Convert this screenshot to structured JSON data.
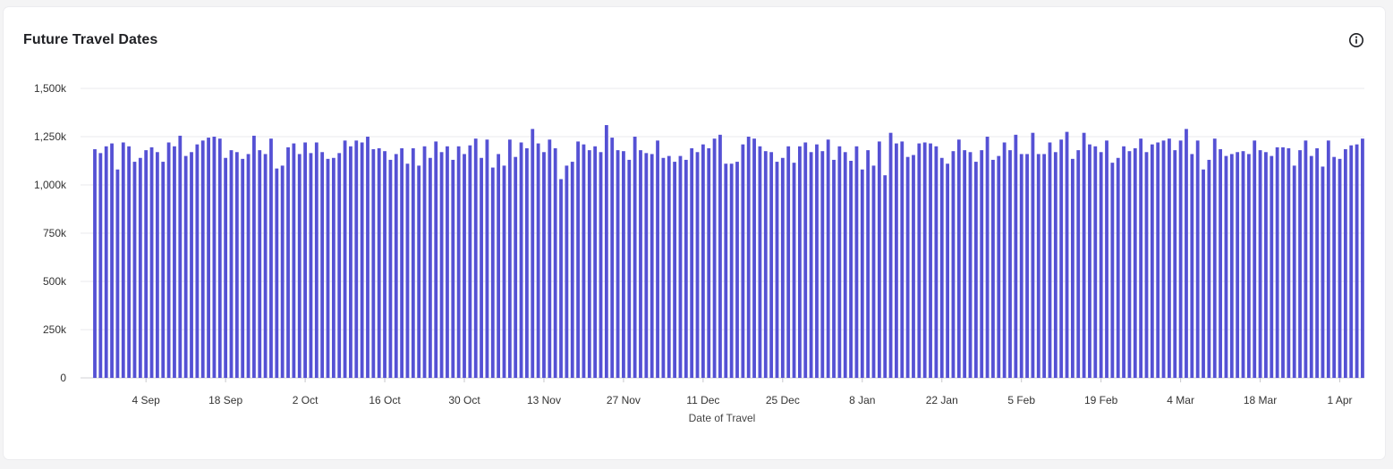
{
  "card": {
    "title": "Future Travel Dates",
    "info_icon": "info-icon"
  },
  "chart_data": {
    "type": "bar",
    "xlabel": "Date of Travel",
    "ylabel": "",
    "ylim": [
      0,
      1500000
    ],
    "y_ticks": [
      {
        "value": 0,
        "label": "0"
      },
      {
        "value": 250000,
        "label": "250k"
      },
      {
        "value": 500000,
        "label": "500k"
      },
      {
        "value": 750000,
        "label": "750k"
      },
      {
        "value": 1000000,
        "label": "1,000k"
      },
      {
        "value": 1250000,
        "label": "1,250k"
      },
      {
        "value": 1500000,
        "label": "1,500k"
      }
    ],
    "x_ticks": [
      {
        "index": 9,
        "label": "4 Sep"
      },
      {
        "index": 23,
        "label": "18 Sep"
      },
      {
        "index": 37,
        "label": "2 Oct"
      },
      {
        "index": 51,
        "label": "16 Oct"
      },
      {
        "index": 65,
        "label": "30 Oct"
      },
      {
        "index": 79,
        "label": "13 Nov"
      },
      {
        "index": 93,
        "label": "27 Nov"
      },
      {
        "index": 107,
        "label": "11 Dec"
      },
      {
        "index": 121,
        "label": "25 Dec"
      },
      {
        "index": 135,
        "label": "8 Jan"
      },
      {
        "index": 149,
        "label": "22 Jan"
      },
      {
        "index": 163,
        "label": "5 Feb"
      },
      {
        "index": 177,
        "label": "19 Feb"
      },
      {
        "index": 191,
        "label": "4 Mar"
      },
      {
        "index": 205,
        "label": "18 Mar"
      },
      {
        "index": 219,
        "label": "1 Apr"
      }
    ],
    "grid": true,
    "bar_color": "#5551d4",
    "series": [
      {
        "values": [
          1185000,
          1165000,
          1200000,
          1215000,
          1080000,
          1220000,
          1200000,
          1120000,
          1140000,
          1180000,
          1195000,
          1170000,
          1120000,
          1220000,
          1200000,
          1255000,
          1150000,
          1170000,
          1210000,
          1230000,
          1245000,
          1250000,
          1240000,
          1140000,
          1180000,
          1170000,
          1135000,
          1160000,
          1255000,
          1180000,
          1160000,
          1240000,
          1085000,
          1100000,
          1195000,
          1215000,
          1160000,
          1220000,
          1165000,
          1220000,
          1170000,
          1135000,
          1140000,
          1165000,
          1230000,
          1200000,
          1230000,
          1220000,
          1250000,
          1185000,
          1190000,
          1175000,
          1130000,
          1160000,
          1190000,
          1110000,
          1190000,
          1100000,
          1200000,
          1140000,
          1225000,
          1170000,
          1200000,
          1130000,
          1200000,
          1160000,
          1205000,
          1240000,
          1140000,
          1235000,
          1090000,
          1160000,
          1100000,
          1235000,
          1145000,
          1220000,
          1190000,
          1290000,
          1215000,
          1170000,
          1235000,
          1190000,
          1030000,
          1100000,
          1120000,
          1225000,
          1210000,
          1180000,
          1200000,
          1170000,
          1310000,
          1245000,
          1180000,
          1175000,
          1130000,
          1250000,
          1180000,
          1165000,
          1160000,
          1230000,
          1140000,
          1150000,
          1120000,
          1150000,
          1130000,
          1190000,
          1170000,
          1210000,
          1190000,
          1240000,
          1260000,
          1110000,
          1110000,
          1120000,
          1210000,
          1250000,
          1240000,
          1200000,
          1175000,
          1170000,
          1120000,
          1140000,
          1200000,
          1115000,
          1200000,
          1220000,
          1170000,
          1210000,
          1175000,
          1235000,
          1130000,
          1200000,
          1170000,
          1125000,
          1200000,
          1080000,
          1180000,
          1100000,
          1225000,
          1050000,
          1270000,
          1215000,
          1225000,
          1145000,
          1155000,
          1215000,
          1220000,
          1215000,
          1200000,
          1140000,
          1110000,
          1175000,
          1235000,
          1180000,
          1170000,
          1120000,
          1180000,
          1250000,
          1130000,
          1150000,
          1220000,
          1180000,
          1260000,
          1160000,
          1160000,
          1270000,
          1160000,
          1160000,
          1220000,
          1170000,
          1235000,
          1275000,
          1135000,
          1180000,
          1270000,
          1210000,
          1200000,
          1170000,
          1230000,
          1115000,
          1140000,
          1200000,
          1175000,
          1190000,
          1240000,
          1170000,
          1210000,
          1220000,
          1230000,
          1240000,
          1180000,
          1230000,
          1290000,
          1160000,
          1230000,
          1080000,
          1130000,
          1240000,
          1185000,
          1150000,
          1160000,
          1170000,
          1175000,
          1160000,
          1230000,
          1180000,
          1170000,
          1150000,
          1195000,
          1195000,
          1190000,
          1100000,
          1180000,
          1230000,
          1150000,
          1190000,
          1095000,
          1230000,
          1145000,
          1135000,
          1185000,
          1205000,
          1210000,
          1240000
        ]
      }
    ]
  }
}
